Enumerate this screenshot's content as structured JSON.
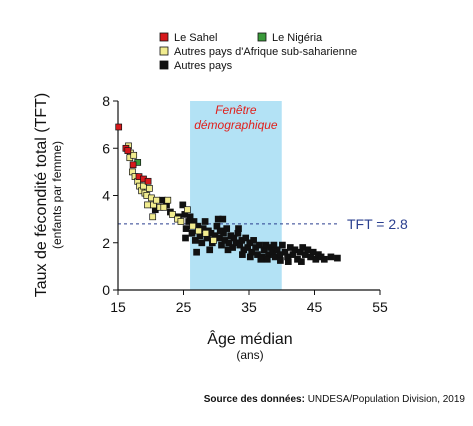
{
  "colors": {
    "sahel": "#d7191c",
    "nigeria": "#3a9a3a",
    "ssa": "#f1ec8f",
    "other": "#111111",
    "window_fill": "#b3e2f5",
    "tft_line": "#2a3f8f",
    "window_text": "#e0201c"
  },
  "source": {
    "label": "Source des données:",
    "text": "UNDESA/Population Division, 2019"
  },
  "chart_data": {
    "type": "scatter",
    "xlabel": "Âge médian",
    "xlabel_sub": "(ans)",
    "ylabel": "Taux de fécondité total (TFT)",
    "ylabel_sub": "(enfants par femme)",
    "xlim": [
      15,
      55
    ],
    "ylim": [
      0,
      8
    ],
    "xticks": [
      15,
      25,
      35,
      45,
      55
    ],
    "yticks": [
      0,
      2,
      4,
      6,
      8
    ],
    "grid": false,
    "legend_position": "top",
    "demographic_window": {
      "label_line1": "Fenêtre",
      "label_line2": "démographique",
      "x_start": 26,
      "x_end": 40
    },
    "reference_line": {
      "y": 2.8,
      "label": "TFT = 2.8"
    },
    "series": [
      {
        "name": "Le Sahel",
        "color_key": "sahel",
        "points": [
          [
            15.1,
            6.9
          ],
          [
            16.2,
            6.0
          ],
          [
            16.5,
            5.9
          ],
          [
            17.3,
            5.3
          ],
          [
            18.2,
            4.8
          ],
          [
            18.9,
            4.7
          ],
          [
            19.6,
            4.6
          ]
        ]
      },
      {
        "name": "Le Nigéria",
        "color_key": "nigeria",
        "points": [
          [
            18.0,
            5.4
          ]
        ]
      },
      {
        "name": "Autres pays d'Afrique sub-saharienne",
        "color_key": "ssa",
        "points": [
          [
            16.6,
            6.1
          ],
          [
            16.9,
            5.8
          ],
          [
            16.8,
            5.6
          ],
          [
            17.4,
            5.7
          ],
          [
            17.2,
            5.0
          ],
          [
            17.6,
            4.8
          ],
          [
            18.0,
            4.6
          ],
          [
            18.3,
            4.4
          ],
          [
            18.6,
            4.2
          ],
          [
            18.9,
            4.4
          ],
          [
            19.1,
            4.1
          ],
          [
            19.4,
            4.0
          ],
          [
            19.8,
            4.3
          ],
          [
            20.1,
            3.9
          ],
          [
            20.4,
            3.6
          ],
          [
            20.9,
            3.8
          ],
          [
            21.4,
            3.5
          ],
          [
            22.0,
            3.5
          ],
          [
            22.6,
            3.8
          ],
          [
            23.3,
            3.2
          ],
          [
            19.5,
            3.6
          ],
          [
            20.3,
            3.1
          ],
          [
            24.1,
            3.0
          ],
          [
            24.6,
            2.9
          ],
          [
            25.6,
            3.4
          ],
          [
            26.4,
            2.7
          ],
          [
            27.3,
            2.5
          ],
          [
            28.4,
            2.4
          ],
          [
            29.6,
            2.1
          ]
        ]
      },
      {
        "name": "Autres pays",
        "color_key": "other",
        "points": [
          [
            20.7,
            3.4
          ],
          [
            21.8,
            3.8
          ],
          [
            22.4,
            3.6
          ],
          [
            23.0,
            3.3
          ],
          [
            24.2,
            3.1
          ],
          [
            24.9,
            3.6
          ],
          [
            25.2,
            3.2
          ],
          [
            25.4,
            2.6
          ],
          [
            25.8,
            2.9
          ],
          [
            25.3,
            2.2
          ],
          [
            26.3,
            2.4
          ],
          [
            26.8,
            2.1
          ],
          [
            26.6,
            2.9
          ],
          [
            27.2,
            2.7
          ],
          [
            27.5,
            2.3
          ],
          [
            27.8,
            2.0
          ],
          [
            28.0,
            2.6
          ],
          [
            28.3,
            2.9
          ],
          [
            28.6,
            2.2
          ],
          [
            28.8,
            2.5
          ],
          [
            29.2,
            2.4
          ],
          [
            29.4,
            2.0
          ],
          [
            29.8,
            2.3
          ],
          [
            30.1,
            2.7
          ],
          [
            30.3,
            3.0
          ],
          [
            30.5,
            2.2
          ],
          [
            30.8,
            1.9
          ],
          [
            31.1,
            2.4
          ],
          [
            31.3,
            2.1
          ],
          [
            31.6,
            2.6
          ],
          [
            31.9,
            2.0
          ],
          [
            32.2,
            2.3
          ],
          [
            32.5,
            1.8
          ],
          [
            32.7,
            2.2
          ],
          [
            33.0,
            2.0
          ],
          [
            33.3,
            2.4
          ],
          [
            33.6,
            1.9
          ],
          [
            33.9,
            2.1
          ],
          [
            34.2,
            1.7
          ],
          [
            34.5,
            2.2
          ],
          [
            34.8,
            1.8
          ],
          [
            35.1,
            2.0
          ],
          [
            35.4,
            1.6
          ],
          [
            35.7,
            2.1
          ],
          [
            36.0,
            1.8
          ],
          [
            36.3,
            1.5
          ],
          [
            36.6,
            1.9
          ],
          [
            37.0,
            1.4
          ],
          [
            37.3,
            1.7
          ],
          [
            37.6,
            1.9
          ],
          [
            38.0,
            1.5
          ],
          [
            38.3,
            1.8
          ],
          [
            38.6,
            1.6
          ],
          [
            39.0,
            1.4
          ],
          [
            39.3,
            1.7
          ],
          [
            39.7,
            1.5
          ],
          [
            40.1,
            1.9
          ],
          [
            40.5,
            1.6
          ],
          [
            40.9,
            1.4
          ],
          [
            41.3,
            1.8
          ],
          [
            41.7,
            1.5
          ],
          [
            42.0,
            1.7
          ],
          [
            42.4,
            1.3
          ],
          [
            42.8,
            1.6
          ],
          [
            43.2,
            1.8
          ],
          [
            43.6,
            1.5
          ],
          [
            44.0,
            1.7
          ],
          [
            44.4,
            1.4
          ],
          [
            44.8,
            1.6
          ],
          [
            45.2,
            1.3
          ],
          [
            45.6,
            1.5
          ],
          [
            46.0,
            1.4
          ],
          [
            46.5,
            1.3
          ],
          [
            47.5,
            1.4
          ],
          [
            48.5,
            1.35
          ],
          [
            31.8,
            1.7
          ],
          [
            34.0,
            1.5
          ],
          [
            36.8,
            1.3
          ],
          [
            38.8,
            1.9
          ],
          [
            41.0,
            1.2
          ],
          [
            43.0,
            1.2
          ],
          [
            35.2,
            1.4
          ],
          [
            29.0,
            1.7
          ],
          [
            27.0,
            1.6
          ],
          [
            37.8,
            1.3
          ],
          [
            39.8,
            1.25
          ],
          [
            30.6,
            2.5
          ],
          [
            33.4,
            2.6
          ],
          [
            26.0,
            3.1
          ],
          [
            31.0,
            3.0
          ]
        ]
      }
    ]
  }
}
